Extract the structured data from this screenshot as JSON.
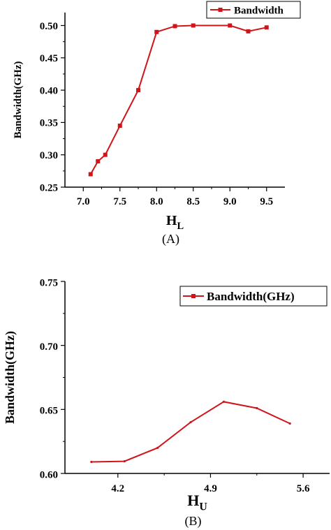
{
  "colors": {
    "series": "#d0141a",
    "axis": "#000000"
  },
  "chart_data": [
    {
      "type": "line",
      "caption": "(A)",
      "xlabel_main": "H",
      "xlabel_sub": "L",
      "ylabel": "Bandwidth(GHz)",
      "xlim": [
        6.75,
        9.75
      ],
      "ylim": [
        0.25,
        0.52
      ],
      "xticks": [
        7.0,
        7.5,
        8.0,
        8.5,
        9.0,
        9.5
      ],
      "xtick_labels": [
        "7.0",
        "7.5",
        "8.0",
        "8.5",
        "9.0",
        "9.5"
      ],
      "yticks": [
        0.25,
        0.3,
        0.35,
        0.4,
        0.45,
        0.5
      ],
      "ytick_labels": [
        "0.25",
        "0.30",
        "0.35",
        "0.40",
        "0.45",
        "0.50"
      ],
      "legend": "top-right",
      "grid": false,
      "series": [
        {
          "name": "Bandwidth",
          "x": [
            7.1,
            7.2,
            7.3,
            7.5,
            7.75,
            8.0,
            8.25,
            8.5,
            9.0,
            9.25,
            9.5
          ],
          "y": [
            0.27,
            0.29,
            0.3,
            0.345,
            0.4,
            0.49,
            0.499,
            0.5,
            0.5,
            0.491,
            0.497
          ],
          "marker": "square"
        }
      ]
    },
    {
      "type": "line",
      "caption": "(B)",
      "xlabel_main": "H",
      "xlabel_sub": "U",
      "ylabel": "Bandwidth(GHz)",
      "xlim": [
        3.8,
        5.8
      ],
      "ylim": [
        0.6,
        0.75
      ],
      "xticks": [
        4.2,
        4.9,
        5.6
      ],
      "xtick_labels": [
        "4.2",
        "4.9",
        "5.6"
      ],
      "yticks": [
        0.6,
        0.65,
        0.7,
        0.75
      ],
      "ytick_labels": [
        "0.60",
        "0.65",
        "0.70",
        "0.75"
      ],
      "legend": "top-right",
      "grid": false,
      "series": [
        {
          "name": "Bandwidth(GHz)",
          "x": [
            4.0,
            4.25,
            4.5,
            4.75,
            5.0,
            5.25,
            5.5
          ],
          "y": [
            0.609,
            0.6095,
            0.62,
            0.64,
            0.656,
            0.651,
            0.639
          ],
          "marker": "none"
        }
      ]
    }
  ]
}
